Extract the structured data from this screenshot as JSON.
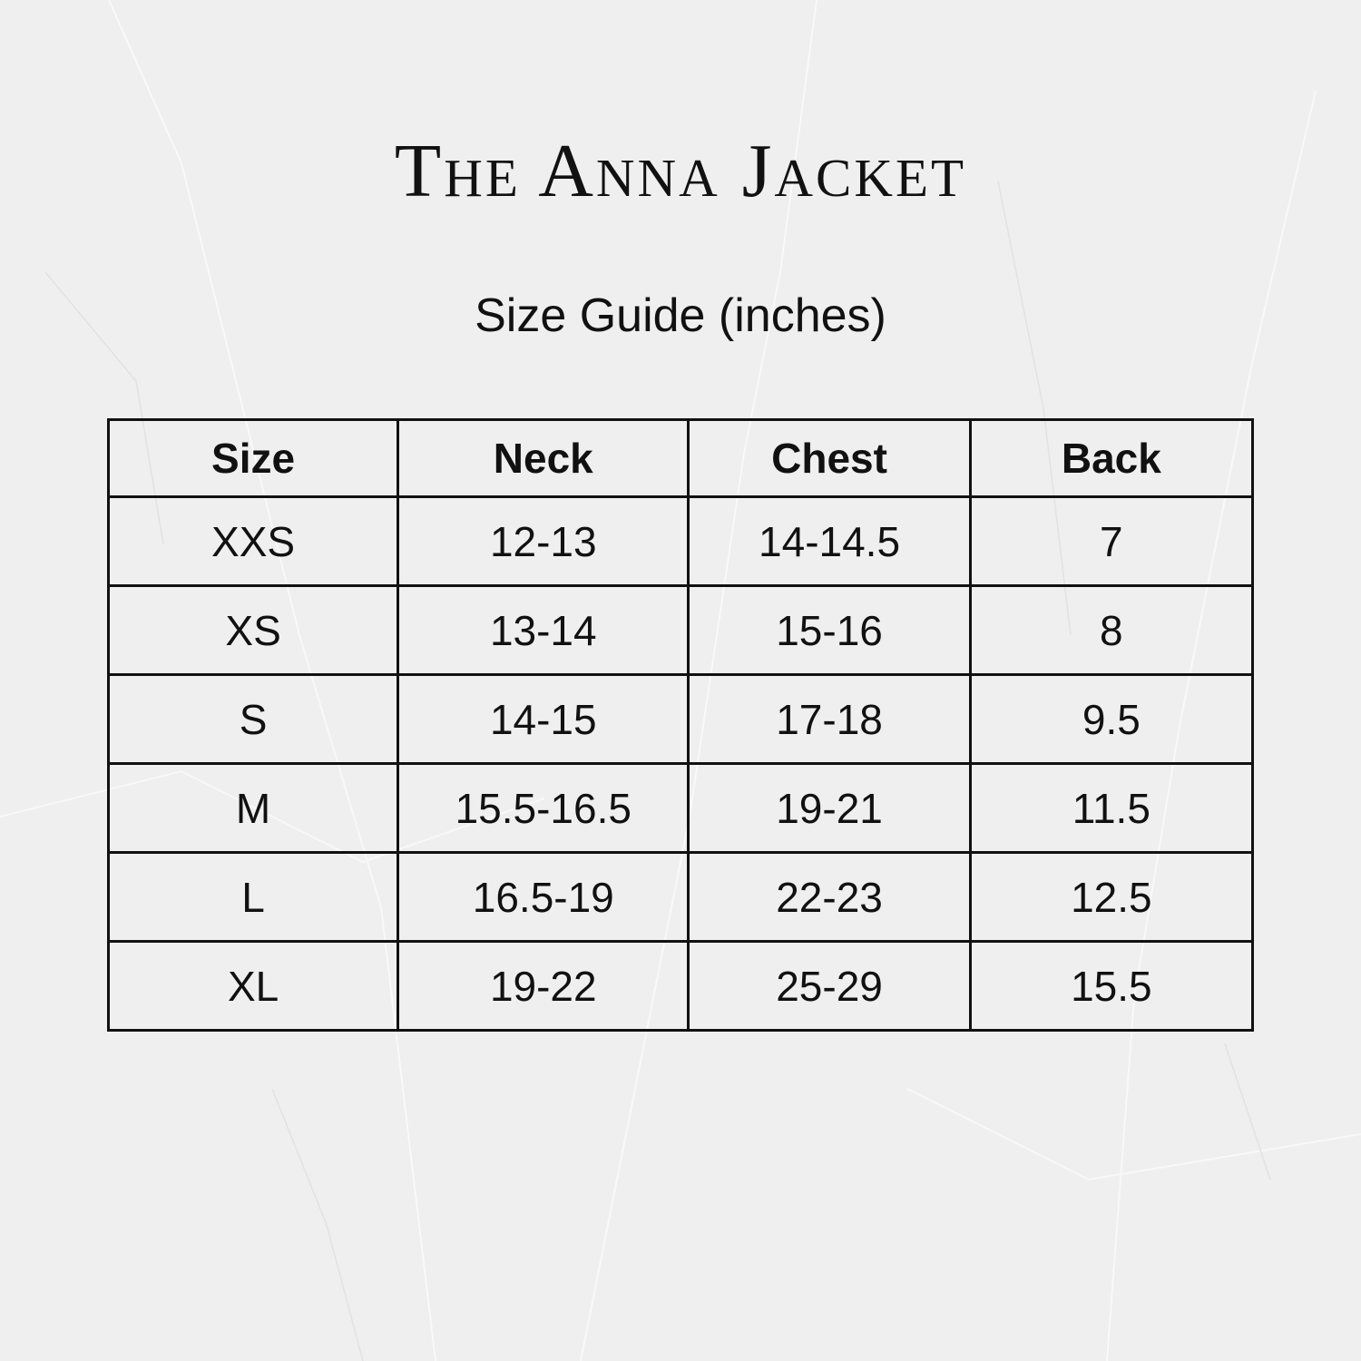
{
  "title": "The Anna Jacket",
  "subtitle": "Size Guide (inches)",
  "table": {
    "headers": [
      "Size",
      "Neck",
      "Chest",
      "Back"
    ],
    "rows": [
      [
        "XXS",
        "12-13",
        "14-14.5",
        "7"
      ],
      [
        "XS",
        "13-14",
        "15-16",
        "8"
      ],
      [
        "S",
        "14-15",
        "17-18",
        "9.5"
      ],
      [
        "M",
        "15.5-16.5",
        "19-21",
        "11.5"
      ],
      [
        "L",
        "16.5-19",
        "22-23",
        "12.5"
      ],
      [
        "XL",
        "19-22",
        "25-29",
        "15.5"
      ]
    ]
  },
  "colors": {
    "background": "#efefef",
    "text": "#111111"
  }
}
